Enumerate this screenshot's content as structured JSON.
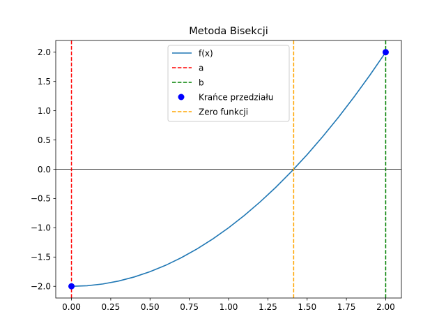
{
  "chart_data": {
    "type": "line",
    "title": "Metoda Bisekcji",
    "xlabel": "",
    "ylabel": "",
    "xlim": [
      -0.1,
      2.1
    ],
    "ylim": [
      -2.2,
      2.2
    ],
    "x_ticks": [
      0.0,
      0.25,
      0.5,
      0.75,
      1.0,
      1.25,
      1.5,
      1.75,
      2.0
    ],
    "x_tick_labels": [
      "0.00",
      "0.25",
      "0.50",
      "0.75",
      "1.00",
      "1.25",
      "1.50",
      "1.75",
      "2.00"
    ],
    "y_ticks": [
      -2.0,
      -1.5,
      -1.0,
      -0.5,
      0.0,
      0.5,
      1.0,
      1.5,
      2.0
    ],
    "y_tick_labels": [
      "−2.0",
      "−1.5",
      "−1.0",
      "−0.5",
      "0.0",
      "0.5",
      "1.0",
      "1.5",
      "2.0"
    ],
    "grid": false,
    "legend_position": "top-center",
    "series": [
      {
        "name": "f(x)",
        "kind": "curve",
        "color": "#1f77b4",
        "x": [
          0.0,
          0.1,
          0.2,
          0.3,
          0.4,
          0.5,
          0.6,
          0.7,
          0.8,
          0.9,
          1.0,
          1.1,
          1.2,
          1.3,
          1.4,
          1.5,
          1.6,
          1.7,
          1.8,
          1.9,
          2.0
        ],
        "y": [
          -2.0,
          -1.99,
          -1.96,
          -1.91,
          -1.84,
          -1.75,
          -1.64,
          -1.51,
          -1.36,
          -1.19,
          -1.0,
          -0.79,
          -0.56,
          -0.31,
          -0.04,
          0.25,
          0.56,
          0.89,
          1.24,
          1.61,
          2.0
        ]
      },
      {
        "name": "a",
        "kind": "vline",
        "color": "#ff0000",
        "x": 0.0
      },
      {
        "name": "b",
        "kind": "vline",
        "color": "#008000",
        "x": 2.0
      },
      {
        "name": "Krańce przedziału",
        "kind": "scatter",
        "color": "#0000ff",
        "points": [
          {
            "x": 0.0,
            "y": -2.0
          },
          {
            "x": 2.0,
            "y": 2.0
          }
        ]
      },
      {
        "name": "Zero funkcji",
        "kind": "vline",
        "color": "#ffa500",
        "x": 1.4142
      }
    ],
    "reference_lines": [
      {
        "kind": "hline",
        "y": 0.0,
        "color": "#000000"
      }
    ]
  }
}
